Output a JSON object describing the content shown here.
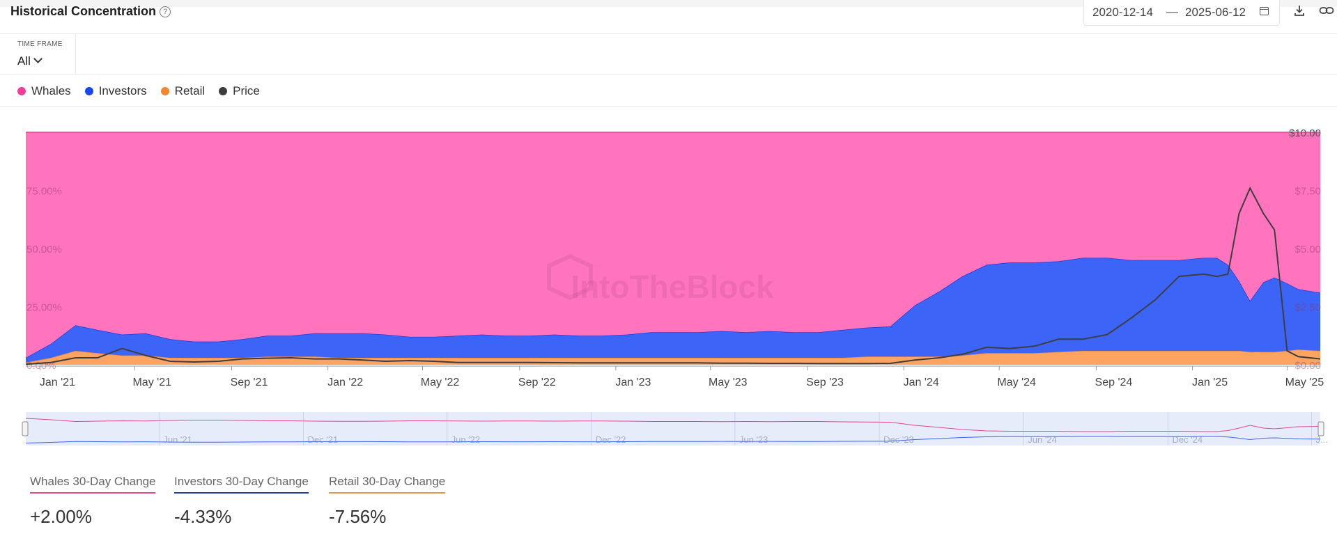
{
  "header": {
    "title": "Historical Concentration",
    "help_icon": "question-circle-icon",
    "date_start": "2020-12-14",
    "date_separator": "—",
    "date_end": "2025-06-12",
    "calendar_icon": "calendar-icon",
    "download_icon": "download-icon",
    "link_icon": "link-icon"
  },
  "timeframe": {
    "label": "TIME FRAME",
    "value": "All"
  },
  "legend": [
    {
      "name": "Whales",
      "color": "#f03b9a"
    },
    {
      "name": "Investors",
      "color": "#1846f5"
    },
    {
      "name": "Retail",
      "color": "#f5852e"
    },
    {
      "name": "Price",
      "color": "#3d3d3d"
    }
  ],
  "chart_data": {
    "type": "area",
    "stacked": true,
    "watermark": "IntoTheBlock",
    "x": [
      "2020-12-14",
      "2021-01-15",
      "2021-02-15",
      "2021-03-15",
      "2021-04-15",
      "2021-05-15",
      "2021-06-15",
      "2021-07-15",
      "2021-08-15",
      "2021-09-15",
      "2021-10-15",
      "2021-11-15",
      "2021-12-15",
      "2022-01-15",
      "2022-02-15",
      "2022-03-15",
      "2022-04-15",
      "2022-05-15",
      "2022-06-15",
      "2022-07-15",
      "2022-08-15",
      "2022-09-15",
      "2022-10-15",
      "2022-11-15",
      "2022-12-15",
      "2023-01-15",
      "2023-02-15",
      "2023-03-15",
      "2023-04-15",
      "2023-05-15",
      "2023-06-15",
      "2023-07-15",
      "2023-08-15",
      "2023-09-15",
      "2023-10-15",
      "2023-11-15",
      "2023-12-15",
      "2024-01-15",
      "2024-02-15",
      "2024-03-15",
      "2024-04-15",
      "2024-05-15",
      "2024-06-15",
      "2024-07-15",
      "2024-08-15",
      "2024-09-15",
      "2024-10-15",
      "2024-11-15",
      "2024-12-15",
      "2025-01-15",
      "2025-02-01",
      "2025-02-15",
      "2025-03-01",
      "2025-03-15",
      "2025-04-01",
      "2025-04-15",
      "2025-05-01",
      "2025-05-15",
      "2025-06-12"
    ],
    "x_axis_ticks": [
      "Jan '21",
      "May '21",
      "Sep '21",
      "Jan '22",
      "May '22",
      "Sep '22",
      "Jan '23",
      "May '23",
      "Sep '23",
      "Jan '24",
      "May '24",
      "Sep '24",
      "Jan '25",
      "May '25"
    ],
    "y_left_ticks": [
      "0.00%",
      "25.00%",
      "50.00%",
      "75.00%"
    ],
    "y_left_range": [
      0,
      100
    ],
    "y_right_ticks": [
      "$0.00",
      "$2.50",
      "$5.00",
      "$7.50",
      "$10.00"
    ],
    "y_right_range": [
      0,
      10
    ],
    "series": [
      {
        "name": "Retail",
        "axis": "left",
        "values": [
          1,
          3,
          6,
          5,
          4,
          4,
          3,
          3,
          3,
          3,
          3.5,
          3.5,
          3.5,
          3,
          3,
          3,
          3,
          3,
          3,
          3,
          3,
          3,
          3,
          3,
          3,
          3,
          3,
          3,
          3,
          3,
          3,
          3,
          3,
          3,
          3,
          3.5,
          3.5,
          3.5,
          3.5,
          4,
          5,
          5,
          5,
          5.5,
          6,
          6,
          6,
          6,
          6,
          6,
          6,
          6,
          6,
          5.5,
          5.5,
          5.5,
          6,
          6.5,
          6
        ]
      },
      {
        "name": "Investors",
        "axis": "left",
        "values": [
          2,
          6,
          11,
          10,
          9,
          9.5,
          8,
          7,
          7,
          8,
          9,
          9,
          10,
          10.5,
          10.5,
          10,
          9,
          9,
          9.5,
          10,
          9.5,
          9.5,
          10,
          9.5,
          9.5,
          10,
          11,
          11,
          11,
          11.5,
          11,
          11.5,
          11,
          11,
          12,
          12.5,
          13,
          22,
          28,
          34,
          38,
          39,
          39,
          39,
          40,
          40,
          39,
          39,
          39,
          40,
          40,
          37,
          30,
          22,
          30,
          32,
          29,
          26,
          25
        ]
      },
      {
        "name": "Whales",
        "axis": "left",
        "values": [
          97,
          91,
          83,
          85,
          87,
          86.5,
          89,
          90,
          90,
          89,
          87.5,
          87.5,
          86.5,
          86.5,
          86.5,
          87,
          88,
          88,
          87.5,
          87,
          87.5,
          87.5,
          87,
          87.5,
          87.5,
          87,
          86,
          86,
          86,
          85.5,
          86,
          85.5,
          86,
          86,
          85,
          84,
          83.5,
          74.5,
          68.5,
          62,
          57,
          56,
          56,
          55.5,
          54,
          54,
          55,
          55,
          55,
          54,
          54,
          57,
          64,
          72.5,
          64.5,
          62.5,
          65,
          67.5,
          69
        ]
      },
      {
        "name": "Price",
        "axis": "right",
        "values": [
          0.02,
          0.1,
          0.3,
          0.3,
          0.7,
          0.4,
          0.15,
          0.12,
          0.15,
          0.25,
          0.28,
          0.3,
          0.25,
          0.25,
          0.2,
          0.15,
          0.18,
          0.15,
          0.1,
          0.1,
          0.1,
          0.1,
          0.09,
          0.08,
          0.08,
          0.08,
          0.08,
          0.08,
          0.08,
          0.07,
          0.07,
          0.06,
          0.06,
          0.05,
          0.05,
          0.05,
          0.06,
          0.2,
          0.3,
          0.45,
          0.75,
          0.7,
          0.8,
          1.1,
          1.1,
          1.3,
          2.0,
          2.8,
          3.8,
          3.9,
          3.8,
          3.9,
          6.5,
          7.6,
          6.5,
          5.8,
          0.6,
          0.35,
          0.25
        ]
      }
    ]
  },
  "navigator": {
    "labels": [
      "Jun '21",
      "Dec '21",
      "Jun '22",
      "Dec '22",
      "Jun '23",
      "Dec '23",
      "Jun '24",
      "Dec '24",
      "J..."
    ]
  },
  "stats": [
    {
      "label": "Whales 30-Day Change",
      "value": "+2.00%",
      "color": "#e2498f"
    },
    {
      "label": "Investors 30-Day Change",
      "value": "-4.33%",
      "color": "#1f3ea8"
    },
    {
      "label": "Retail 30-Day Change",
      "value": "-7.56%",
      "color": "#e89549"
    }
  ]
}
